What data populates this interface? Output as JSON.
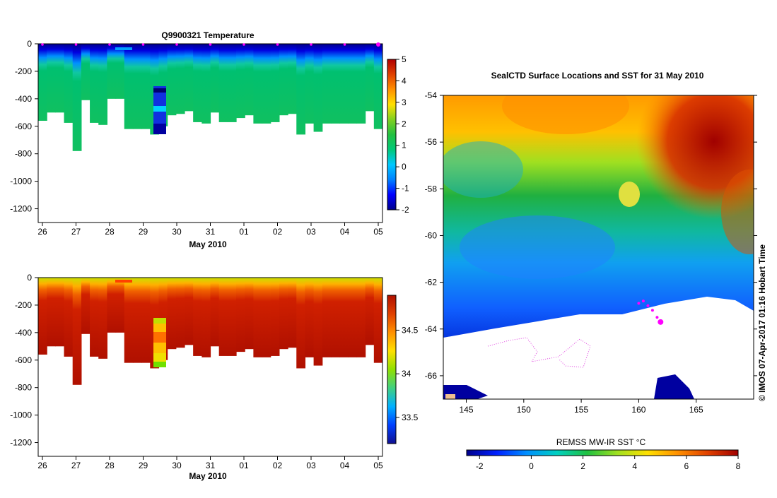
{
  "colors": {
    "temperature_scale": [
      "#00008b",
      "#0000ff",
      "#0080ff",
      "#00c8ff",
      "#00c878",
      "#22c040",
      "#80d020",
      "#ffe000",
      "#ff9000",
      "#e04000",
      "#b00000"
    ],
    "salinity_scale": [
      "#101090",
      "#0040ff",
      "#00b0ff",
      "#40d080",
      "#90e000",
      "#ffe000",
      "#ff9000",
      "#e04000",
      "#b01000"
    ],
    "sst_scale": [
      "#00008b",
      "#0020ff",
      "#0090ff",
      "#00d0c0",
      "#20c040",
      "#a0e020",
      "#ffe000",
      "#ff9000",
      "#e04000",
      "#a00000"
    ],
    "track": "#ff00ff"
  },
  "chart_data": [
    {
      "type": "heatmap",
      "title": "Q9900321  Temperature",
      "xlabel": "May 2010",
      "ylabel": "",
      "x_ticks": [
        "26",
        "27",
        "28",
        "29",
        "30",
        "31",
        "01",
        "02",
        "03",
        "04",
        "05"
      ],
      "y_ticks": [
        "0",
        "-200",
        "-400",
        "-600",
        "-800",
        "-1000",
        "-1200"
      ],
      "ylim": [
        -1300,
        0
      ],
      "colorbar": {
        "min": -2,
        "max": 5,
        "ticks": [
          "-2",
          "-1",
          "0",
          "1",
          "2",
          "3",
          "4",
          "5"
        ]
      },
      "profile_depths": [
        -560,
        -500,
        -500,
        -575,
        -780,
        -410,
        -575,
        -590,
        -400,
        -400,
        -620,
        -620,
        -620,
        -660,
        -600,
        -520,
        -510,
        -490,
        -570,
        -580,
        -500,
        -570,
        -570,
        -540,
        -520,
        -580,
        -580,
        -570,
        -520,
        -510,
        -660,
        -580,
        -640,
        -580,
        -580,
        -580,
        -580,
        -580,
        -490,
        -620
      ]
    },
    {
      "type": "heatmap",
      "title": "",
      "xlabel": "May 2010",
      "ylabel": "",
      "x_ticks": [
        "26",
        "27",
        "28",
        "29",
        "30",
        "31",
        "01",
        "02",
        "03",
        "04",
        "05"
      ],
      "y_ticks": [
        "0",
        "-200",
        "-400",
        "-600",
        "-800",
        "-1000",
        "-1200"
      ],
      "ylim": [
        -1300,
        0
      ],
      "colorbar": {
        "min": 33.2,
        "max": 34.9,
        "ticks": [
          "33.5",
          "34",
          "34.5"
        ]
      }
    },
    {
      "type": "heatmap",
      "title": "SealCTD Surface Locations and SST for 31 May 2010",
      "xlabel": "",
      "ylabel": "",
      "x_ticks": [
        "145",
        "150",
        "155",
        "160",
        "165"
      ],
      "y_ticks": [
        "-54",
        "-56",
        "-58",
        "-60",
        "-62",
        "-64",
        "-66"
      ],
      "xlim": [
        143,
        170
      ],
      "ylim": [
        -67,
        -54
      ],
      "colorbar": {
        "label": "REMSS MW-IR SST °C",
        "min": -2.5,
        "max": 8,
        "ticks": [
          "-2",
          "0",
          "2",
          "4",
          "6",
          "8"
        ]
      },
      "track_points": [
        [
          160.0,
          -62.9
        ],
        [
          160.4,
          -62.8
        ],
        [
          160.8,
          -63.0
        ],
        [
          161.2,
          -63.2
        ],
        [
          161.6,
          -63.5
        ],
        [
          161.9,
          -63.7
        ]
      ],
      "credit": "© IMOS 07-Apr-2017 01:16 Hobart Time"
    }
  ]
}
